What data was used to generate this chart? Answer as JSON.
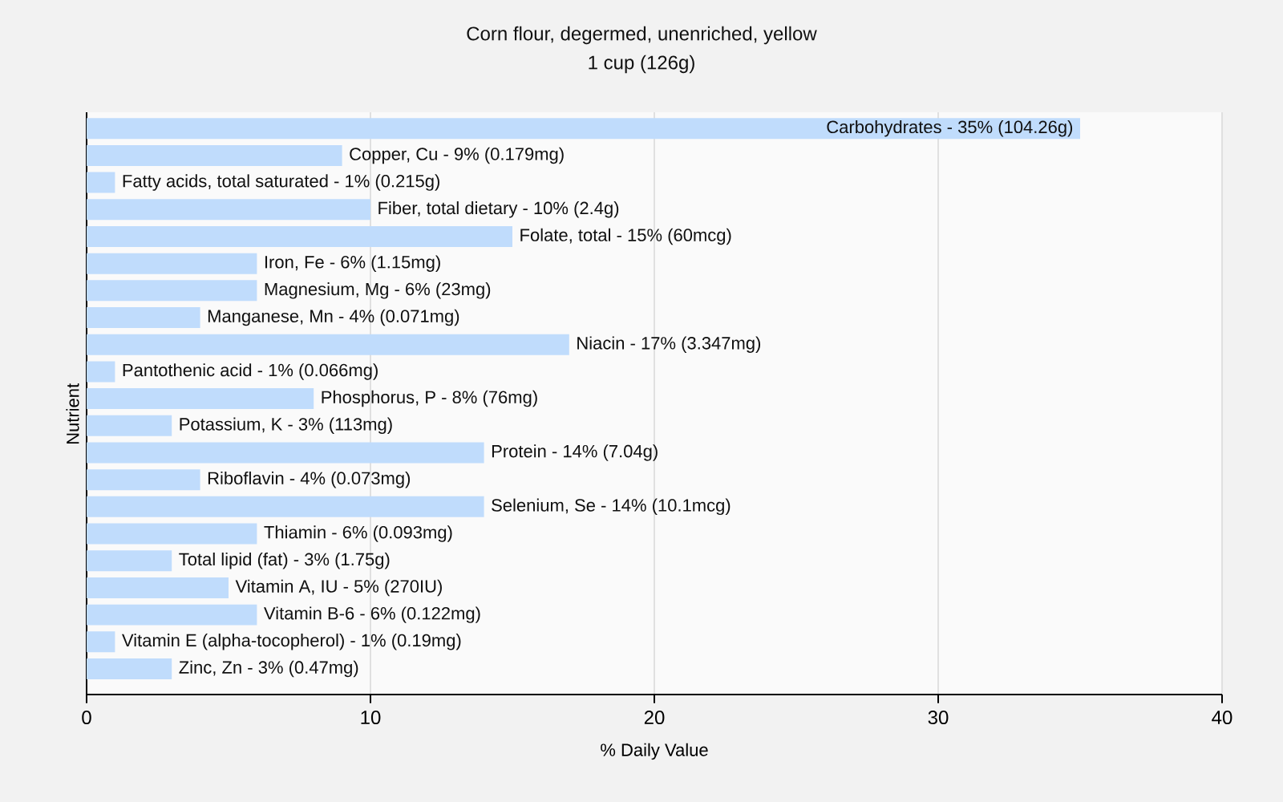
{
  "chart_data": {
    "type": "bar",
    "orientation": "horizontal",
    "title": "Corn flour, degermed, unenriched, yellow",
    "subtitle": "1 cup (126g)",
    "xlabel": "% Daily Value",
    "ylabel": "Nutrient",
    "categories": [
      "Carbohydrates - 35% (104.26g)",
      "Copper, Cu - 9% (0.179mg)",
      "Fatty acids, total saturated - 1% (0.215g)",
      "Fiber, total dietary - 10% (2.4g)",
      "Folate, total - 15% (60mcg)",
      "Iron, Fe - 6% (1.15mg)",
      "Magnesium, Mg - 6% (23mg)",
      "Manganese, Mn - 4% (0.071mg)",
      "Niacin - 17% (3.347mg)",
      "Pantothenic acid - 1% (0.066mg)",
      "Phosphorus, P - 8% (76mg)",
      "Potassium, K - 3% (113mg)",
      "Protein - 14% (7.04g)",
      "Riboflavin - 4% (0.073mg)",
      "Selenium, Se - 14% (10.1mcg)",
      "Thiamin - 6% (0.093mg)",
      "Total lipid (fat) - 3% (1.75g)",
      "Vitamin A, IU - 5% (270IU)",
      "Vitamin B-6 - 6% (0.122mg)",
      "Vitamin E (alpha-tocopherol) - 1% (0.19mg)",
      "Zinc, Zn - 3% (0.47mg)"
    ],
    "values": [
      35,
      9,
      1,
      10,
      15,
      6,
      6,
      4,
      17,
      1,
      8,
      3,
      14,
      4,
      14,
      6,
      3,
      5,
      6,
      1,
      3
    ],
    "color": "#c0dcfc",
    "xlim": [
      0,
      40
    ],
    "xticks": [
      0,
      10,
      20,
      30,
      40
    ],
    "grid": "x"
  }
}
